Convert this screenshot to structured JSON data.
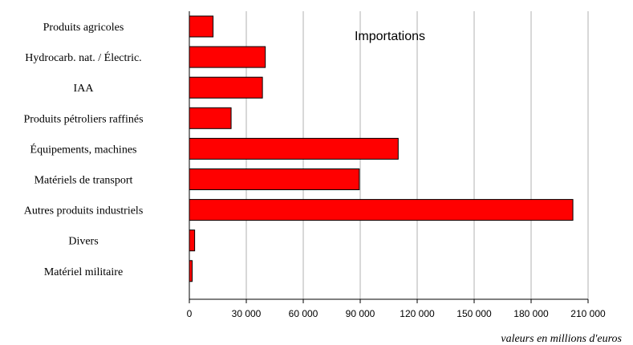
{
  "chart_data": {
    "type": "bar",
    "orientation": "horizontal",
    "title": "Importations",
    "xlabel": "valeurs en millions d'euros",
    "ylabel": "",
    "categories": [
      "Produits agricoles",
      "Hydrocarb. nat. / Électric.",
      "IAA",
      "Produits pétroliers raffinés",
      "Équipements, machines",
      "Matériels de transport",
      "Autres produits industriels",
      "Divers",
      "Matériel militaire"
    ],
    "values": [
      12500,
      40000,
      38500,
      22000,
      110000,
      89500,
      202000,
      2800,
      1500
    ],
    "xlim": [
      0,
      210000
    ],
    "xticks": [
      0,
      30000,
      60000,
      90000,
      120000,
      150000,
      180000,
      210000
    ],
    "xtick_labels": [
      "0",
      "30 000",
      "60 000",
      "90 000",
      "120 000",
      "150 000",
      "180 000",
      "210 000"
    ],
    "grid": "vertical",
    "legend": "none",
    "bar_color": "#ff0000",
    "bar_edge_color": "#000000"
  }
}
